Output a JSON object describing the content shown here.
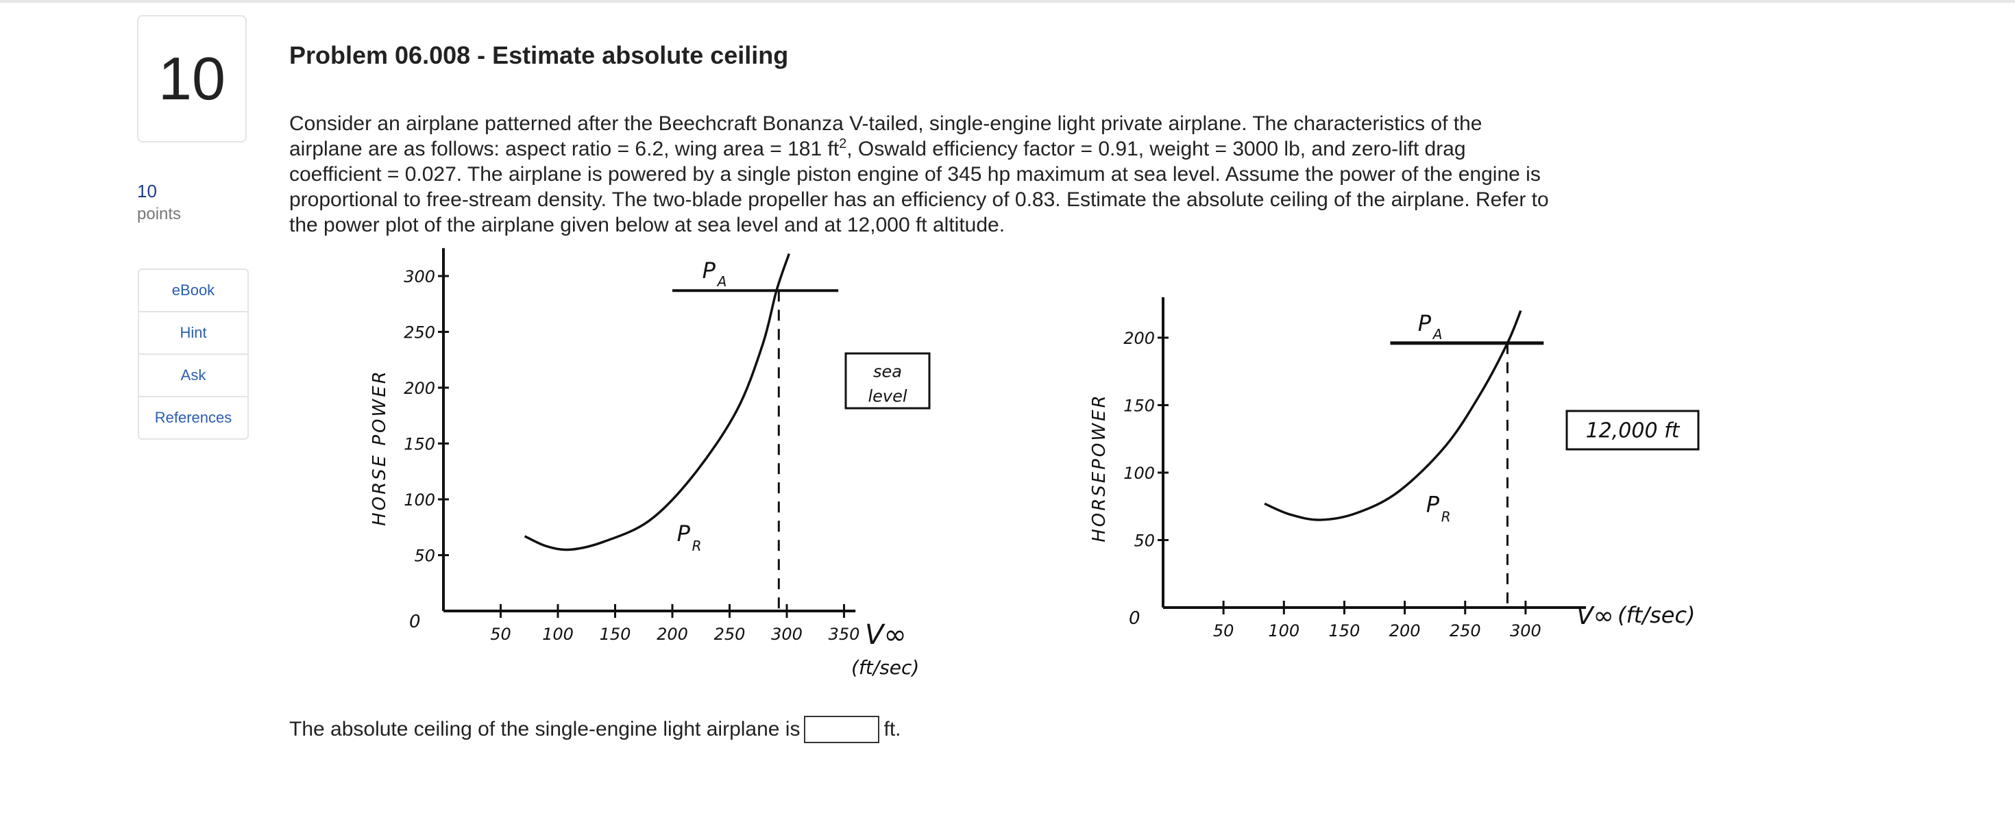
{
  "question": {
    "number": "10",
    "points_value": "10",
    "points_label": "points"
  },
  "tools": [
    {
      "label": "eBook"
    },
    {
      "label": "Hint"
    },
    {
      "label": "Ask"
    },
    {
      "label": "References"
    }
  ],
  "problem": {
    "title": "Problem 06.008 - Estimate absolute ceiling",
    "text_1": "Consider an airplane patterned after the Beechcraft Bonanza V-tailed, single-engine light private airplane. The characteristics of the airplane are as follows: aspect ratio = 6.2, wing area = 181 ft",
    "sup": "2",
    "text_2": ", Oswald efficiency factor = 0.91, weight = 3000 lb, and zero-lift drag coefficient = 0.027. The airplane is powered by a single piston engine of 345 hp maximum at sea level. Assume the power of the engine is proportional to free-stream density. The two-blade propeller has an efficiency of 0.83. Estimate the absolute ceiling of the airplane. Refer to the power plot of the airplane given below at sea level and at 12,000 ft altitude."
  },
  "answer": {
    "prefix": "The absolute ceiling of the single-engine light airplane is",
    "value": "",
    "suffix": "ft."
  },
  "chart_data": [
    {
      "type": "line",
      "box_label": [
        "sea",
        "level"
      ],
      "ylabel": "HORSE POWER",
      "xlabel": "V∞",
      "xunit": "(ft/sec)",
      "xlim": [
        0,
        360
      ],
      "ylim": [
        0,
        325
      ],
      "xticks": [
        50,
        100,
        150,
        200,
        250,
        300,
        350
      ],
      "yticks": [
        50,
        100,
        150,
        200,
        250,
        300
      ],
      "origin_label": "0",
      "series": [
        {
          "name": "PR",
          "x": [
            71,
            90,
            111,
            140,
            180,
            218,
            256,
            279,
            291,
            302
          ],
          "y": [
            67,
            58,
            55,
            62,
            81,
            121,
            179,
            239,
            287,
            320
          ]
        },
        {
          "name": "PA",
          "x": [
            200,
            345
          ],
          "y": [
            287,
            287
          ]
        }
      ],
      "vline_x": 293
    },
    {
      "type": "line",
      "box_label": [
        "12,000 ft"
      ],
      "ylabel": "HORSEPOWER",
      "xlabel": "V∞",
      "xunit": "(ft/sec)",
      "xlim": [
        0,
        350
      ],
      "ylim": [
        0,
        230
      ],
      "xticks": [
        50,
        100,
        150,
        200,
        250,
        300
      ],
      "yticks": [
        50,
        100,
        150,
        200
      ],
      "origin_label": "0",
      "series": [
        {
          "name": "PR",
          "x": [
            84,
            105,
            130,
            160,
            195,
            234,
            263,
            285,
            296
          ],
          "y": [
            77,
            69,
            65,
            70,
            86,
            120,
            159,
            196,
            220
          ]
        },
        {
          "name": "PA",
          "x": [
            188,
            315
          ],
          "y": [
            196,
            196
          ]
        }
      ],
      "vline_x": 285
    }
  ]
}
